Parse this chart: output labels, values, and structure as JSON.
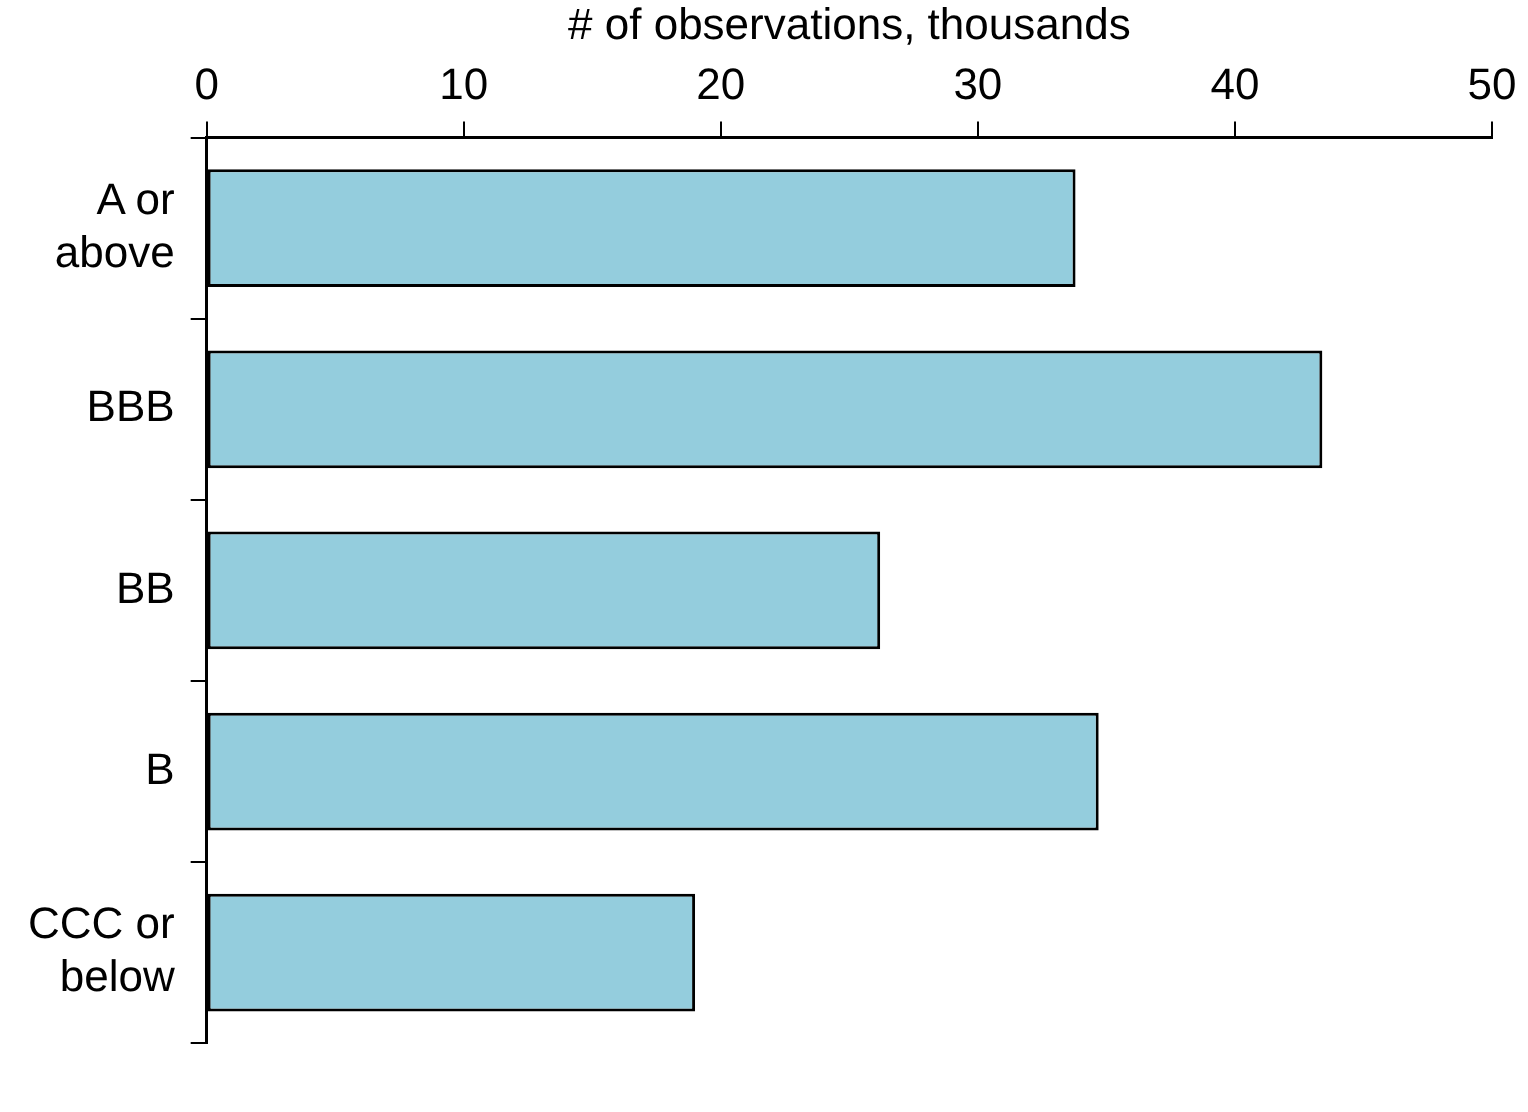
{
  "chart_data": {
    "type": "bar",
    "orientation": "horizontal",
    "xlabel": "# of observations, thousands",
    "categories": [
      "A or above",
      "BBB",
      "BB",
      "B",
      "CCC or below"
    ],
    "values": [
      33.8,
      43.4,
      26.2,
      34.7,
      19.0
    ],
    "color": "#94cddd",
    "xlim": [
      0,
      50
    ],
    "xticks": [
      0,
      10,
      20,
      30,
      40,
      50
    ],
    "grid": false,
    "legend": false
  }
}
